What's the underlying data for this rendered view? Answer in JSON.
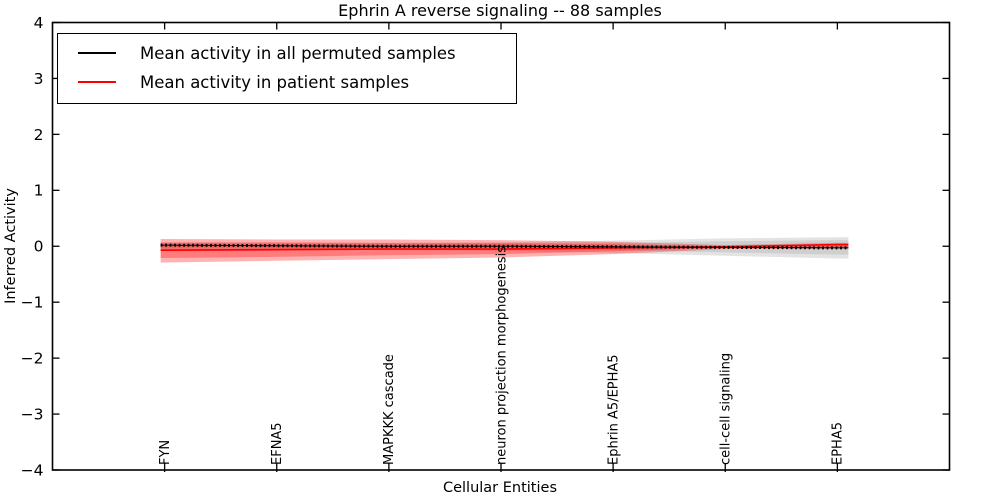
{
  "chart_data": {
    "type": "line",
    "title": "Ephrin A  reverse signaling -- 88 samples",
    "xlabel": "Cellular Entities",
    "ylabel": "Inferred Activity",
    "ylim": [
      -4,
      4
    ],
    "yticks": [
      {
        "value": 4,
        "label": "4"
      },
      {
        "value": 3,
        "label": "3"
      },
      {
        "value": 2,
        "label": "2"
      },
      {
        "value": 1,
        "label": "1"
      },
      {
        "value": 0,
        "label": "0"
      },
      {
        "value": -1,
        "label": "−1"
      },
      {
        "value": -2,
        "label": "−2"
      },
      {
        "value": -3,
        "label": "−3"
      },
      {
        "value": -4,
        "label": "−4"
      }
    ],
    "categories": [
      "FYN",
      "EFNA5",
      "MAPKKK cascade",
      "neuron projection morphogenesis",
      "Ephrin A5/EPHA5",
      "cell-cell signaling",
      "EPHA5"
    ],
    "grid": false,
    "legend_position": "upper left",
    "series": [
      {
        "name": "Mean activity in all permuted samples",
        "color": "#000000",
        "style": "solid-with-dense-markers",
        "values": [
          0.02,
          0.01,
          0.0,
          0.0,
          -0.01,
          -0.02,
          -0.03
        ]
      },
      {
        "name": "Mean activity in patient samples",
        "color": "#ff0000",
        "style": "solid",
        "values": [
          -0.07,
          -0.06,
          -0.05,
          -0.05,
          -0.03,
          -0.01,
          0.03
        ]
      }
    ],
    "bands": [
      {
        "series": "Mean activity in all permuted samples",
        "level": "outer",
        "color": "#999999",
        "opacity": 0.28,
        "upper": [
          0.06,
          0.06,
          0.06,
          0.07,
          0.1,
          0.14,
          0.16
        ],
        "lower": [
          -0.06,
          -0.06,
          -0.07,
          -0.08,
          -0.12,
          -0.17,
          -0.22
        ]
      },
      {
        "series": "Mean activity in all permuted samples",
        "level": "inner",
        "color": "#999999",
        "opacity": 0.28,
        "upper": [
          0.03,
          0.03,
          0.03,
          0.04,
          0.06,
          0.09,
          0.11
        ],
        "lower": [
          -0.03,
          -0.03,
          -0.04,
          -0.05,
          -0.07,
          -0.11,
          -0.15
        ]
      },
      {
        "series": "Mean activity in patient samples",
        "level": "outer",
        "color": "#ff0000",
        "opacity": 0.3,
        "upper": [
          0.13,
          0.12,
          0.12,
          0.11,
          0.08,
          0.02,
          0.06
        ],
        "lower": [
          -0.29,
          -0.26,
          -0.23,
          -0.2,
          -0.14,
          -0.05,
          -0.04
        ]
      },
      {
        "series": "Mean activity in patient samples",
        "level": "inner",
        "color": "#ff0000",
        "opacity": 0.3,
        "upper": [
          0.07,
          0.07,
          0.06,
          0.06,
          0.04,
          0.0,
          0.04
        ],
        "lower": [
          -0.21,
          -0.19,
          -0.16,
          -0.14,
          -0.09,
          -0.03,
          -0.02
        ]
      }
    ]
  },
  "legend": {
    "entries": [
      {
        "label": "Mean activity in all permuted samples",
        "color": "#000000"
      },
      {
        "label": "Mean activity in patient samples",
        "color": "#ff0000"
      }
    ]
  }
}
